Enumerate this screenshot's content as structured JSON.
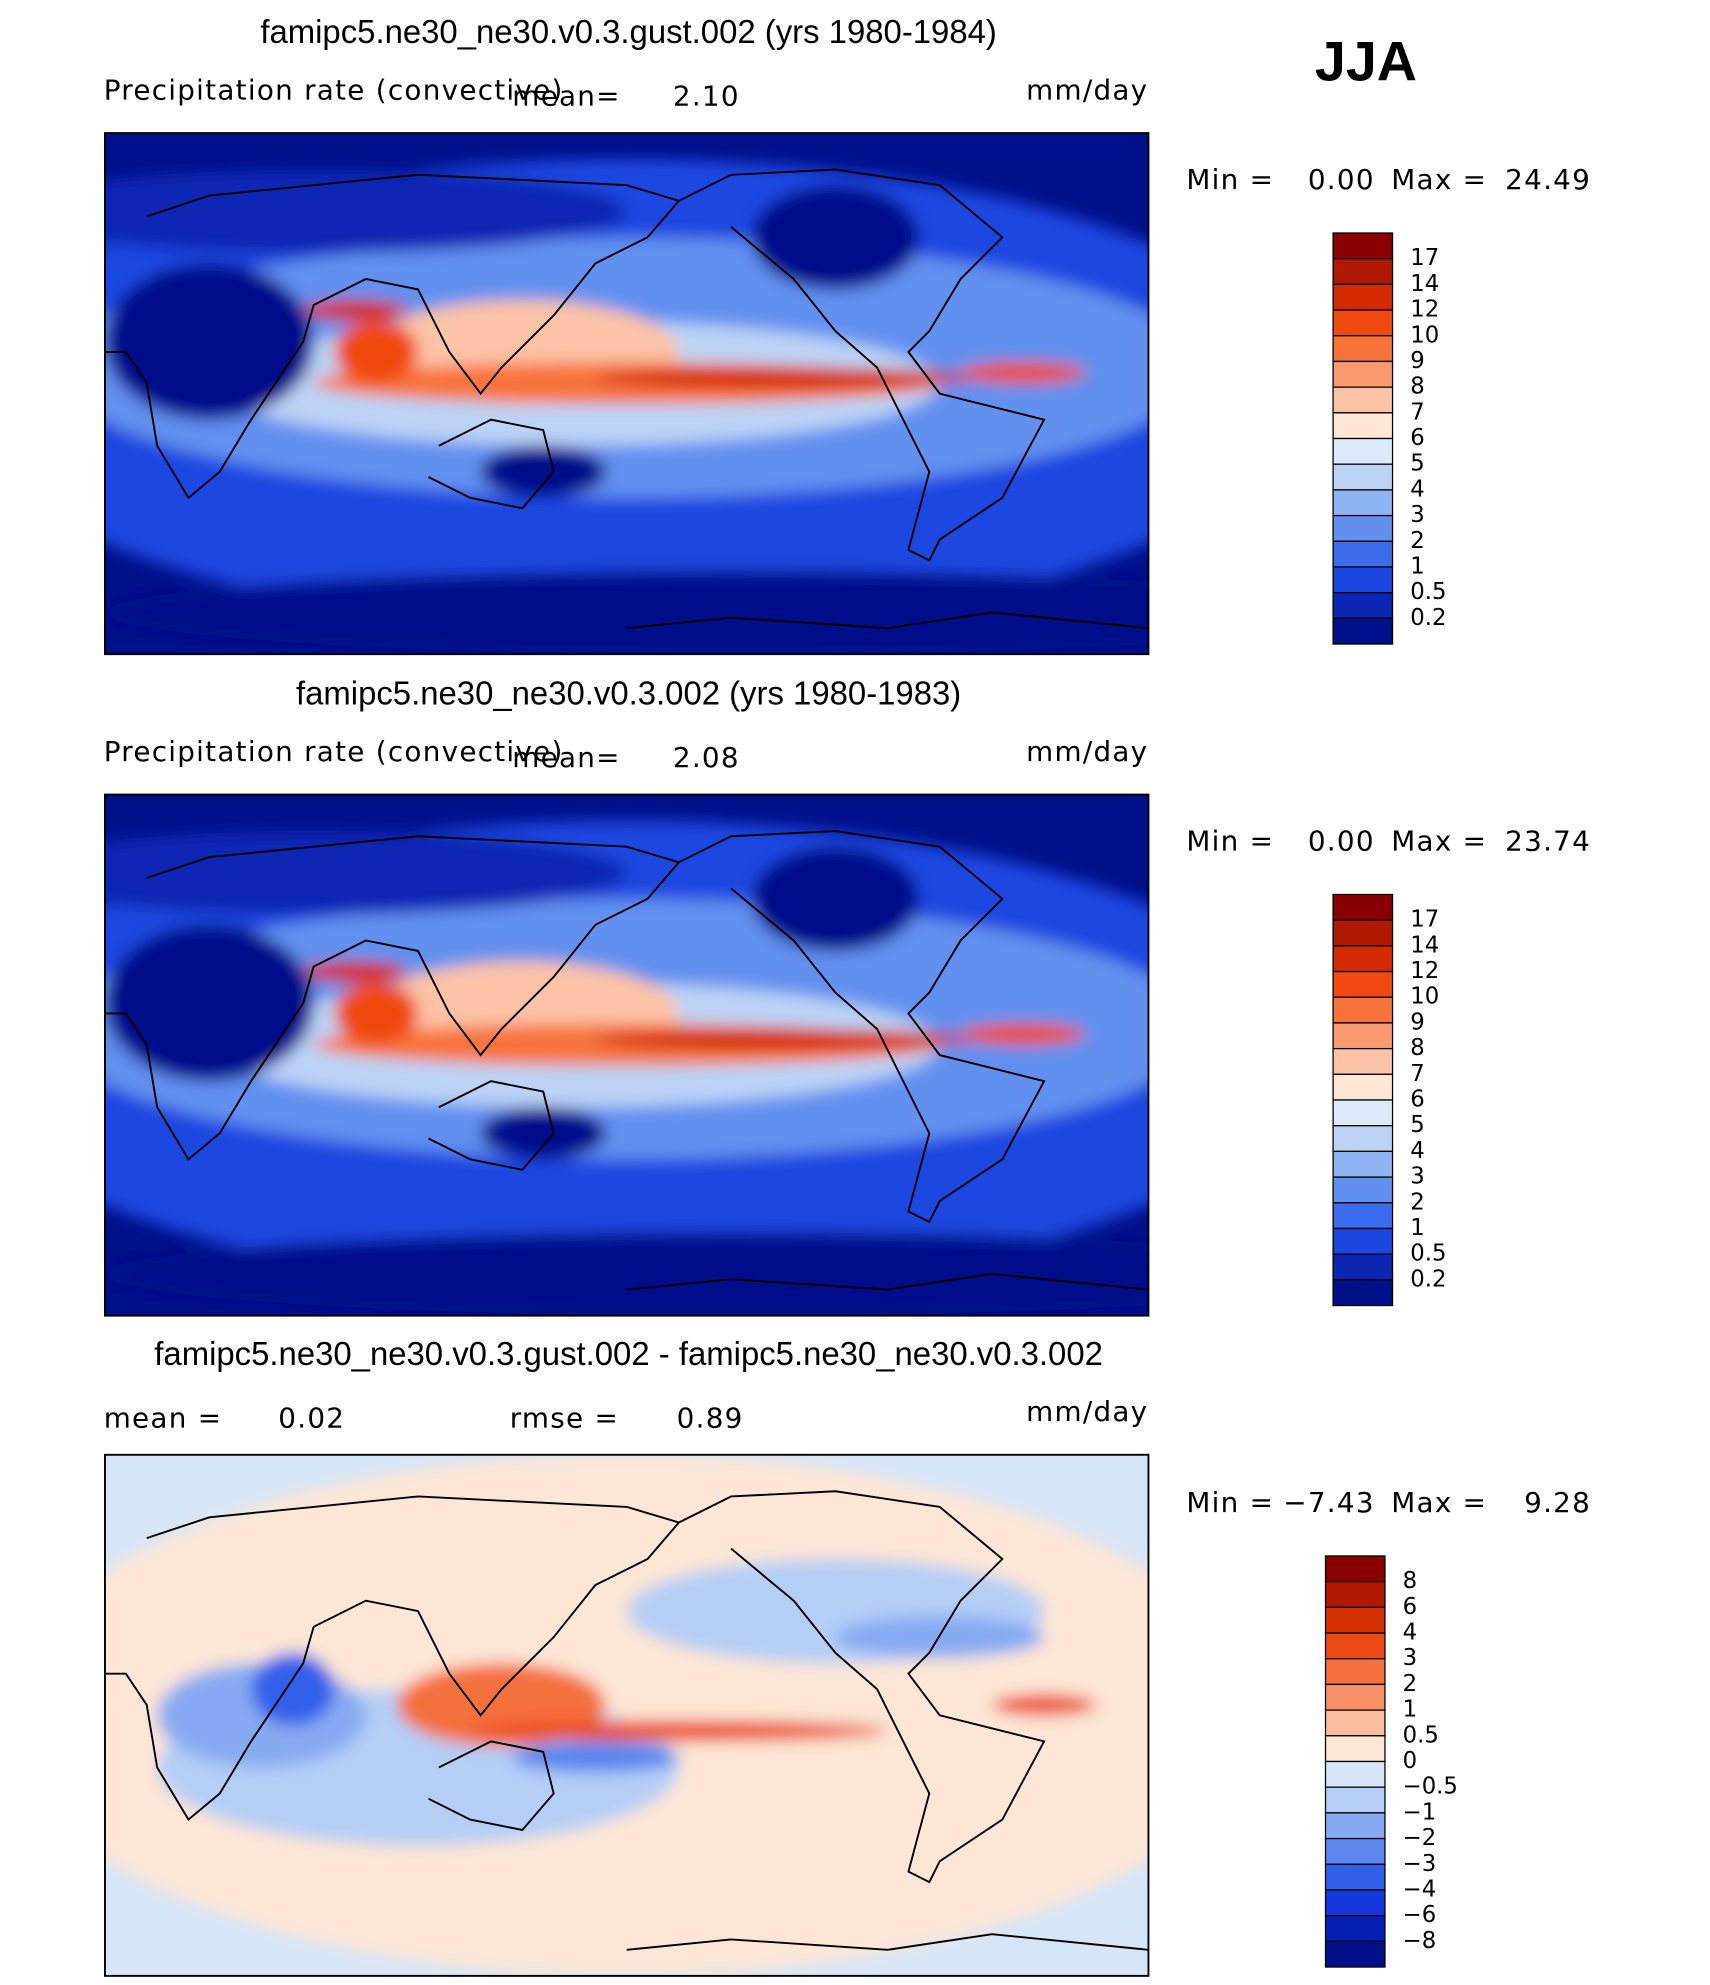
{
  "season": "JJA",
  "panels": [
    {
      "title": "famipc5.ne30_ne30.v0.3.gust.002 (yrs 1980-1984)",
      "variable": "Precipitation rate (convective)",
      "mean_label": "mean=",
      "mean": "2.10",
      "units": "mm/day",
      "min_label": "Min =",
      "min": "0.00",
      "max_label": "Max =",
      "max": "24.49",
      "colorbar": {
        "labels": [
          "17",
          "14",
          "12",
          "10",
          "9",
          "8",
          "7",
          "6",
          "5",
          "4",
          "3",
          "2",
          "1",
          "0.5",
          "0.2"
        ],
        "colors": [
          "#8a0000",
          "#b01800",
          "#d42a00",
          "#f04a10",
          "#f8733a",
          "#fa9a70",
          "#fcc3a6",
          "#fde6d4",
          "#dceaf8",
          "#bcd3f6",
          "#8fb4f4",
          "#6290ef",
          "#3a6cec",
          "#1c46e0",
          "#0c26b4",
          "#00108a"
        ]
      }
    },
    {
      "title": "famipc5.ne30_ne30.v0.3.002 (yrs 1980-1983)",
      "variable": "Precipitation rate (convective)",
      "mean_label": "mean=",
      "mean": "2.08",
      "units": "mm/day",
      "min_label": "Min =",
      "min": "0.00",
      "max_label": "Max =",
      "max": "23.74",
      "colorbar": {
        "labels": [
          "17",
          "14",
          "12",
          "10",
          "9",
          "8",
          "7",
          "6",
          "5",
          "4",
          "3",
          "2",
          "1",
          "0.5",
          "0.2"
        ],
        "colors": [
          "#8a0000",
          "#b01800",
          "#d42a00",
          "#f04a10",
          "#f8733a",
          "#fa9a70",
          "#fcc3a6",
          "#fde6d4",
          "#dceaf8",
          "#bcd3f6",
          "#8fb4f4",
          "#6290ef",
          "#3a6cec",
          "#1c46e0",
          "#0c26b4",
          "#00108a"
        ]
      }
    },
    {
      "title": "famipc5.ne30_ne30.v0.3.gust.002 - famipc5.ne30_ne30.v0.3.002",
      "mean_label": "mean =",
      "mean": "0.02",
      "rmse_label": "rmse =",
      "rmse": "0.89",
      "units": "mm/day",
      "min_label": "Min =",
      "min": "−7.43",
      "max_label": "Max =",
      "max": "9.28",
      "colorbar": {
        "labels": [
          "8",
          "6",
          "4",
          "3",
          "2",
          "1",
          "0.5",
          "0",
          "−0.5",
          "−1",
          "−2",
          "−3",
          "−4",
          "−6",
          "−8"
        ],
        "colors": [
          "#8a0000",
          "#b01800",
          "#d43000",
          "#ec4a14",
          "#f4703c",
          "#f89068",
          "#fbbca0",
          "#fde6d6",
          "#d6e6f8",
          "#b4cef6",
          "#86aaf2",
          "#5a86ee",
          "#3060ea",
          "#1438dc",
          "#0420b4",
          "#00108a"
        ]
      }
    }
  ]
}
